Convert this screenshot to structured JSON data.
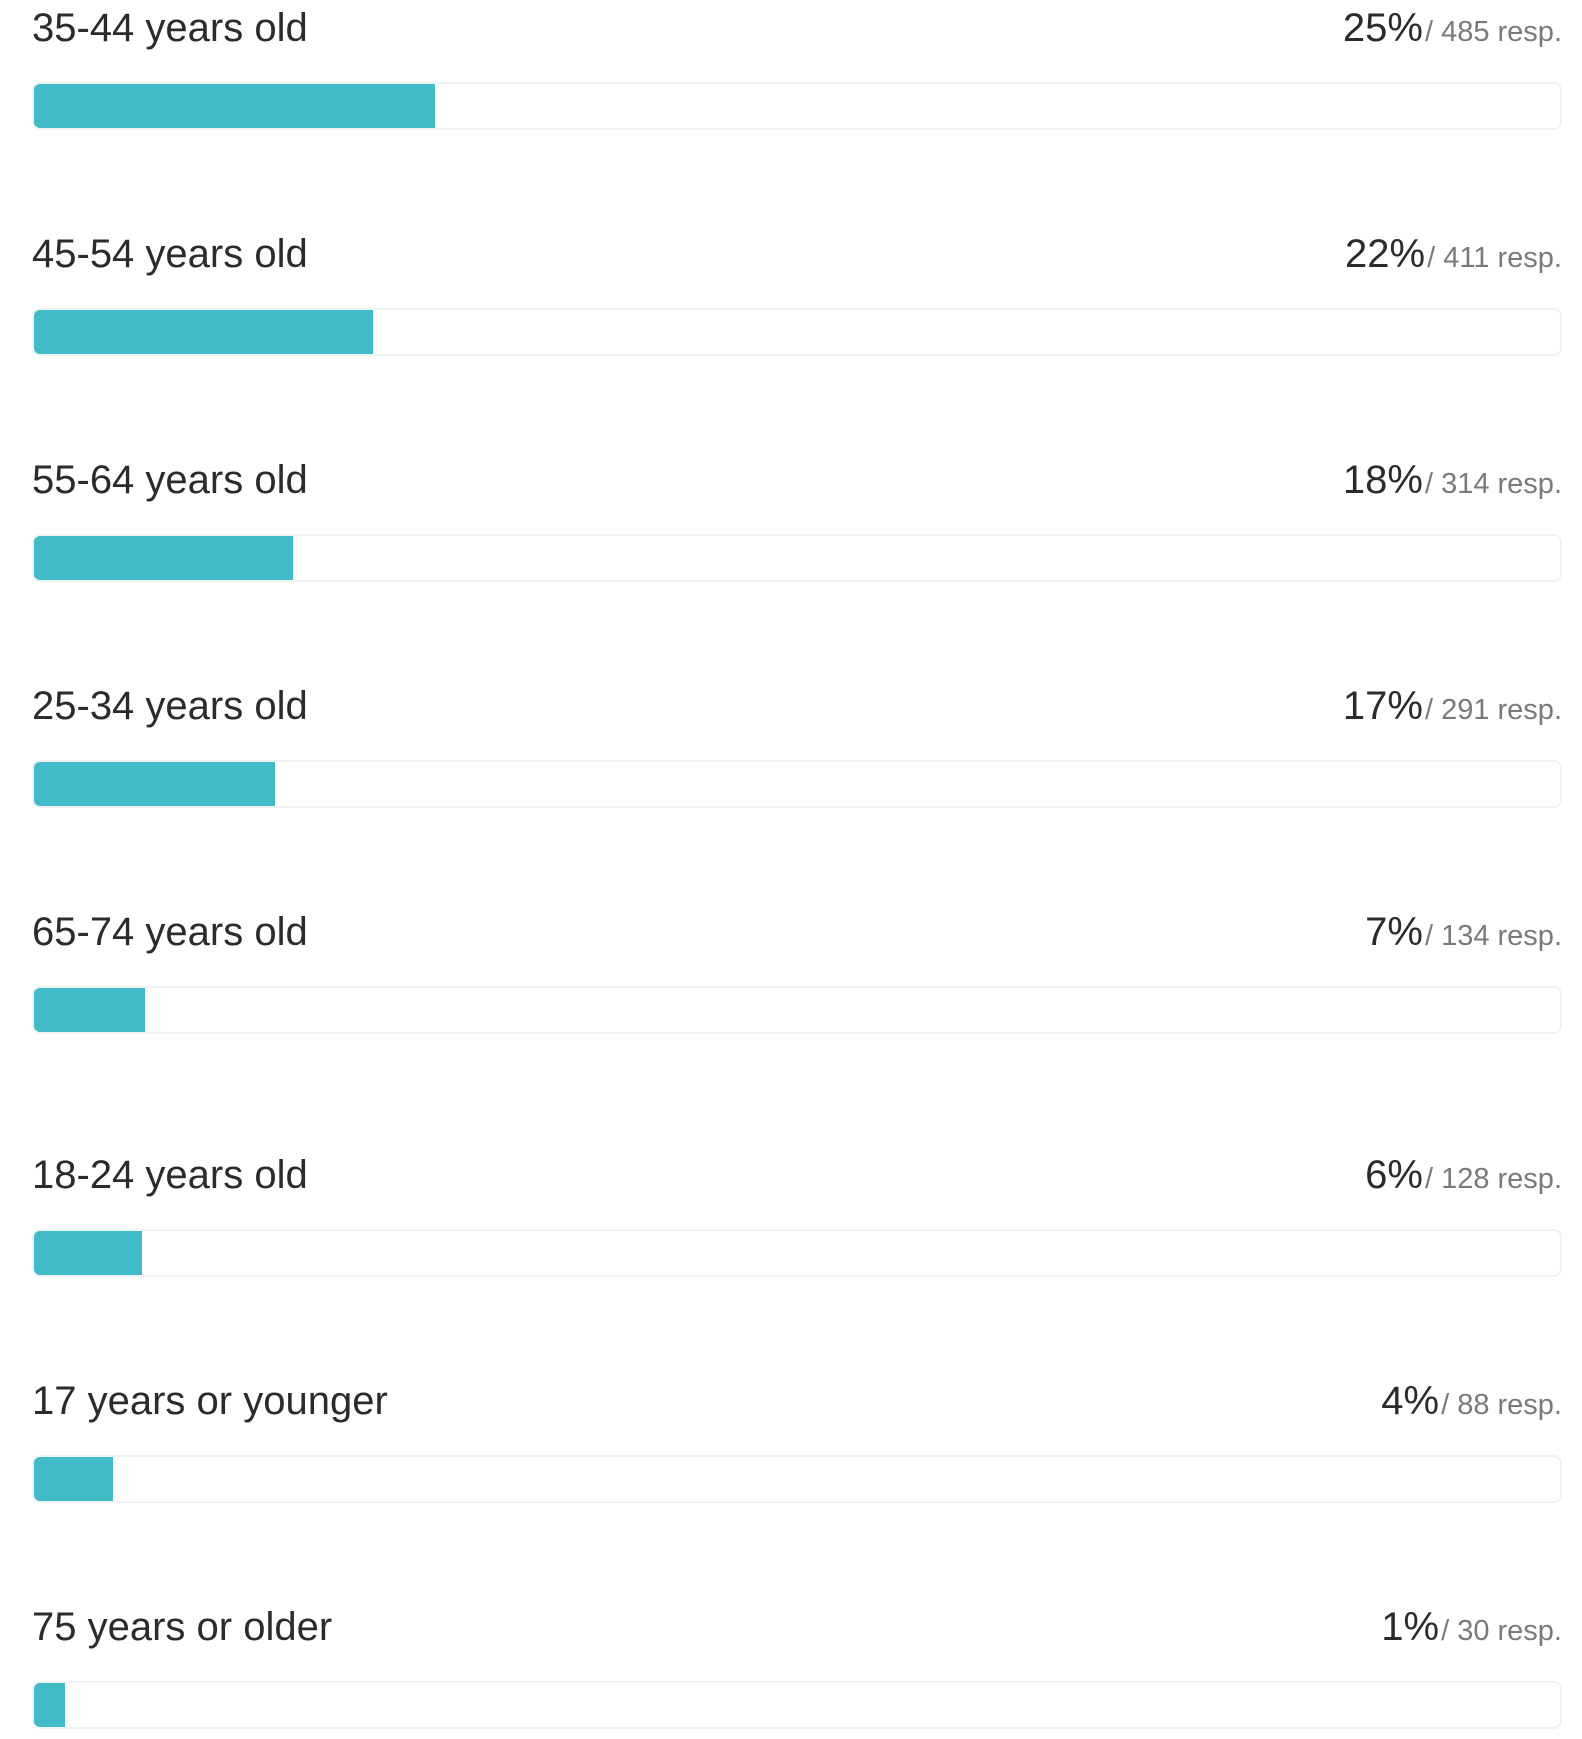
{
  "chart_data": {
    "type": "bar",
    "orientation": "horizontal",
    "colors": {
      "bar": "#42bbc8",
      "track_border": "#eef4f6"
    },
    "categories": [
      "35-44 years old",
      "45-54 years old",
      "55-64 years old",
      "25-34 years old",
      "65-74 years old",
      "18-24 years old",
      "17 years or younger",
      "75 years or older"
    ],
    "percent_labels": [
      "25%",
      "22%",
      "18%",
      "17%",
      "7%",
      "6%",
      "4%",
      "1%"
    ],
    "response_labels": [
      "/ 485 resp.",
      "/ 411 resp.",
      "/ 314 resp.",
      "/ 291 resp.",
      "/ 134 resp.",
      "/ 128 resp.",
      "/ 88 resp.",
      "/ 30 resp."
    ],
    "values": [
      25,
      22,
      18,
      17,
      7,
      6,
      4,
      1
    ],
    "responses": [
      485,
      411,
      314,
      291,
      134,
      128,
      88,
      30
    ],
    "fill_fraction": [
      0.263,
      0.222,
      0.17,
      0.158,
      0.073,
      0.071,
      0.052,
      0.02
    ],
    "xlim": [
      0,
      100
    ]
  }
}
